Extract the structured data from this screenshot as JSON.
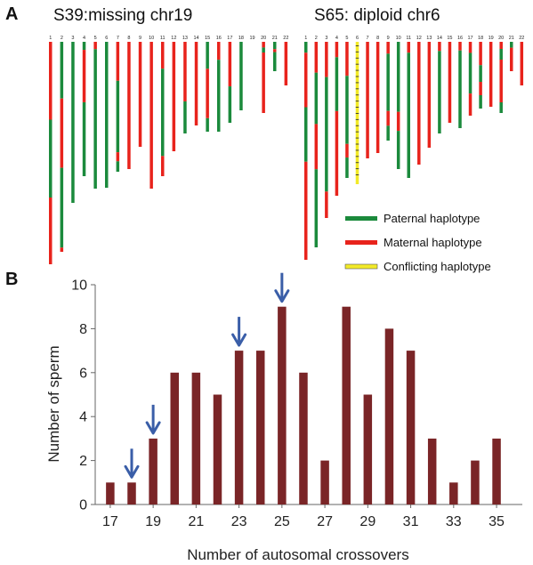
{
  "panel_a": {
    "letter": "A",
    "left_title": "S39:missing chr19",
    "right_title": "S65: diploid chr6",
    "chromosome_labels": [
      "1",
      "2",
      "3",
      "4",
      "5",
      "6",
      "7",
      "8",
      "9",
      "10",
      "11",
      "12",
      "13",
      "14",
      "15",
      "16",
      "17",
      "18",
      "19",
      "20",
      "21",
      "22"
    ],
    "legend": [
      {
        "label": "Paternal haplotype",
        "color": "#1b8a3c"
      },
      {
        "label": "Maternal haplotype",
        "color": "#e8231c"
      },
      {
        "label": "Conflicting haplotype",
        "color": "#f2ea28"
      }
    ],
    "colors": {
      "paternal": "#1b8a3c",
      "maternal": "#e8231c",
      "conflicting": "#f2ea28"
    }
  },
  "chart_data": {
    "type": "bar",
    "panel_letter": "B",
    "title": "",
    "xlabel": "Number of autosomal crossovers",
    "ylabel": "Number of sperm",
    "x": [
      17,
      18,
      19,
      20,
      21,
      22,
      23,
      24,
      25,
      26,
      27,
      28,
      29,
      30,
      31,
      32,
      33,
      34,
      35
    ],
    "values": [
      1,
      1,
      3,
      6,
      6,
      5,
      7,
      7,
      9,
      6,
      2,
      9,
      5,
      8,
      7,
      3,
      1,
      2,
      3
    ],
    "x_tick_labels": [
      "17",
      "19",
      "21",
      "23",
      "25",
      "27",
      "29",
      "31",
      "33",
      "35"
    ],
    "y_tick_labels": [
      "0",
      "2",
      "4",
      "6",
      "8",
      "10"
    ],
    "ylim": [
      0,
      10
    ],
    "xlim": [
      16.3,
      36.2
    ],
    "grid": false,
    "bar_color": "#7a2527",
    "arrows_at_x": [
      18,
      19,
      23,
      25
    ],
    "arrow_color": "#3a5ea8"
  }
}
